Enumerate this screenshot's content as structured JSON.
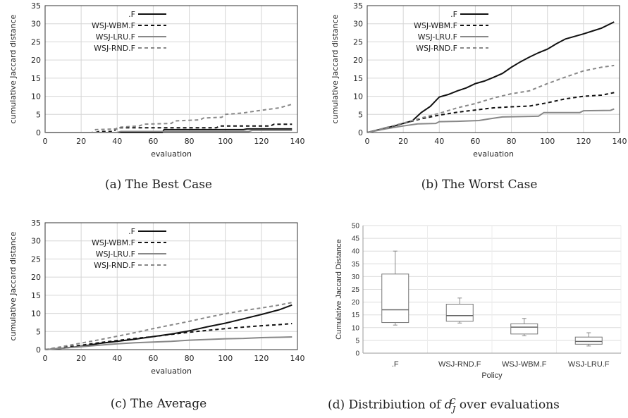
{
  "chart_data": [
    {
      "type": "line",
      "xlabel": "evaluation",
      "ylabel": "cumulative Jaccard distance",
      "xlim": [
        0,
        140
      ],
      "ylim": [
        0,
        35
      ],
      "xticks": [
        "0",
        "20",
        "40",
        "60",
        "80",
        "100",
        "120",
        "140"
      ],
      "yticks": [
        "0",
        "5",
        "10",
        "15",
        "20",
        "25",
        "30",
        "35"
      ],
      "legend": "top-left",
      "caption": "(a)  The Best Case",
      "series": [
        {
          "name": ".F",
          "style": "solid",
          "color": "#111111",
          "x": [
            0,
            65,
            66,
            110,
            112,
            137
          ],
          "y": [
            0,
            0,
            0.8,
            0.8,
            1.0,
            1.0
          ]
        },
        {
          "name": "WSJ-WBM.F",
          "style": "dashed",
          "color": "#111111",
          "x": [
            0,
            28,
            30,
            38,
            40,
            95,
            97,
            125,
            127,
            137
          ],
          "y": [
            0,
            0,
            0.3,
            0.3,
            1.3,
            1.3,
            1.8,
            1.8,
            2.3,
            2.3
          ]
        },
        {
          "name": "WSJ-LRU.F",
          "style": "solid",
          "color": "#888888",
          "x": [
            0,
            40,
            42,
            113,
            115,
            137
          ],
          "y": [
            0,
            0,
            0.3,
            0.3,
            0.6,
            0.6
          ]
        },
        {
          "name": "WSJ-RND.F",
          "style": "dashed",
          "color": "#888888",
          "x": [
            0,
            26,
            28,
            40,
            42,
            52,
            55,
            70,
            72,
            86,
            88,
            98,
            100,
            110,
            115,
            130,
            137
          ],
          "y": [
            0,
            0,
            0.8,
            1.0,
            1.5,
            1.8,
            2.3,
            2.5,
            3.2,
            3.5,
            4.0,
            4.2,
            5.0,
            5.4,
            5.8,
            6.8,
            7.8
          ]
        }
      ]
    },
    {
      "type": "line",
      "xlabel": "evaluation",
      "ylabel": "cumulative Jaccard distance",
      "xlim": [
        0,
        140
      ],
      "ylim": [
        0,
        35
      ],
      "xticks": [
        "0",
        "20",
        "40",
        "60",
        "80",
        "100",
        "120",
        "140"
      ],
      "yticks": [
        "0",
        "5",
        "10",
        "15",
        "20",
        "25",
        "30",
        "35"
      ],
      "legend": "top-left",
      "caption": "(b)  The Worst Case",
      "series": [
        {
          "name": ".F",
          "style": "solid",
          "color": "#111111",
          "x": [
            0,
            5,
            10,
            15,
            20,
            25,
            30,
            35,
            40,
            45,
            50,
            55,
            60,
            65,
            70,
            75,
            80,
            85,
            90,
            95,
            100,
            105,
            110,
            115,
            120,
            125,
            130,
            137
          ],
          "y": [
            0,
            0.6,
            1.2,
            1.8,
            2.5,
            3.2,
            5.5,
            7.2,
            9.8,
            10.5,
            11.5,
            12.3,
            13.5,
            14.2,
            15.2,
            16.3,
            18.0,
            19.5,
            20.8,
            22.0,
            23.0,
            24.5,
            25.8,
            26.5,
            27.2,
            28.0,
            28.8,
            30.5
          ]
        },
        {
          "name": "WSJ-WBM.F",
          "style": "dashed",
          "color": "#111111",
          "x": [
            0,
            10,
            20,
            30,
            40,
            50,
            60,
            70,
            80,
            90,
            100,
            110,
            120,
            130,
            137
          ],
          "y": [
            0,
            1.2,
            2.5,
            3.8,
            4.8,
            5.6,
            6.2,
            6.8,
            7.1,
            7.3,
            8.2,
            9.3,
            10.0,
            10.3,
            11.0
          ]
        },
        {
          "name": "WSJ-LRU.F",
          "style": "solid",
          "color": "#888888",
          "x": [
            0,
            10,
            20,
            28,
            38,
            40,
            50,
            62,
            68,
            75,
            95,
            98,
            118,
            120,
            135,
            137
          ],
          "y": [
            0,
            1.0,
            1.8,
            2.4,
            2.5,
            3.0,
            3.1,
            3.3,
            3.8,
            4.3,
            4.5,
            5.5,
            5.5,
            6.0,
            6.1,
            6.5
          ]
        },
        {
          "name": "WSJ-RND.F",
          "style": "dashed",
          "color": "#888888",
          "x": [
            0,
            10,
            20,
            30,
            40,
            50,
            60,
            70,
            80,
            90,
            100,
            110,
            120,
            130,
            137
          ],
          "y": [
            0,
            1.3,
            2.6,
            4.0,
            5.3,
            6.8,
            8.0,
            9.5,
            10.7,
            11.5,
            13.5,
            15.3,
            17.0,
            18.0,
            18.5
          ]
        }
      ]
    },
    {
      "type": "line",
      "xlabel": "evaluation",
      "ylabel": "cumulative Jaccard distance",
      "xlim": [
        0,
        140
      ],
      "ylim": [
        0,
        35
      ],
      "xticks": [
        "0",
        "20",
        "40",
        "60",
        "80",
        "100",
        "120",
        "140"
      ],
      "yticks": [
        "0",
        "5",
        "10",
        "15",
        "20",
        "25",
        "30",
        "35"
      ],
      "legend": "top-left",
      "caption": "(c)  The Average",
      "series": [
        {
          "name": ".F",
          "style": "solid",
          "color": "#111111",
          "x": [
            0,
            10,
            20,
            30,
            40,
            50,
            60,
            70,
            80,
            90,
            100,
            110,
            120,
            130,
            137
          ],
          "y": [
            0,
            0.4,
            0.9,
            1.7,
            2.3,
            2.9,
            3.6,
            4.3,
            5.2,
            6.3,
            7.3,
            8.5,
            9.7,
            11.0,
            12.3
          ]
        },
        {
          "name": "WSJ-WBM.F",
          "style": "dashed",
          "color": "#111111",
          "x": [
            0,
            10,
            20,
            30,
            40,
            50,
            60,
            70,
            80,
            90,
            100,
            110,
            120,
            130,
            137
          ],
          "y": [
            0,
            0.6,
            1.2,
            1.9,
            2.5,
            3.1,
            3.6,
            4.2,
            4.8,
            5.3,
            5.8,
            6.2,
            6.6,
            6.9,
            7.2
          ]
        },
        {
          "name": "WSJ-LRU.F",
          "style": "solid",
          "color": "#888888",
          "x": [
            0,
            10,
            20,
            30,
            40,
            50,
            60,
            70,
            80,
            90,
            100,
            110,
            120,
            130,
            137
          ],
          "y": [
            0,
            0.4,
            0.8,
            1.2,
            1.6,
            1.9,
            2.1,
            2.3,
            2.6,
            2.8,
            3.0,
            3.1,
            3.3,
            3.4,
            3.5
          ]
        },
        {
          "name": "WSJ-RND.F",
          "style": "dashed",
          "color": "#888888",
          "x": [
            0,
            10,
            20,
            30,
            40,
            50,
            60,
            70,
            80,
            90,
            100,
            110,
            120,
            130,
            137
          ],
          "y": [
            0,
            0.9,
            1.8,
            2.7,
            3.7,
            4.7,
            5.8,
            6.8,
            7.8,
            8.9,
            9.9,
            10.8,
            11.5,
            12.3,
            13.0
          ]
        }
      ]
    },
    {
      "type": "box",
      "xlabel": "Policy",
      "ylabel": "Cumulative Jaccard Distance",
      "ylim": [
        0,
        50
      ],
      "yticks": [
        "0",
        "5",
        "10",
        "15",
        "20",
        "25",
        "30",
        "35",
        "40",
        "45",
        "50"
      ],
      "caption_prefix": "(d)  Distribiution of ",
      "caption_symbol": "d",
      "caption_sub": "J",
      "caption_sup": "C",
      "caption_suffix": " over evaluations",
      "categories": [
        ".F",
        "WSJ-RND.F",
        "WSJ-WBM.F",
        "WSJ-LRU.F"
      ],
      "boxes": [
        {
          "min": 11.0,
          "q1": 12.0,
          "median": 17.0,
          "q3": 31.0,
          "max": 40.0
        },
        {
          "min": 11.8,
          "q1": 12.5,
          "median": 14.7,
          "q3": 19.2,
          "max": 21.6
        },
        {
          "min": 6.8,
          "q1": 7.5,
          "median": 10.2,
          "q3": 11.5,
          "max": 13.6
        },
        {
          "min": 2.8,
          "q1": 3.5,
          "median": 4.6,
          "q3": 6.3,
          "max": 8.0
        }
      ]
    }
  ]
}
